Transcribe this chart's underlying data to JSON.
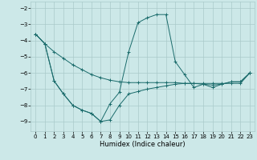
{
  "xlabel": "Humidex (Indice chaleur)",
  "bg_color": "#cce8e8",
  "grid_color": "#aacaca",
  "line_color": "#1a6b6b",
  "xlim": [
    -0.5,
    23.5
  ],
  "ylim": [
    -9.6,
    -1.6
  ],
  "yticks": [
    -9,
    -8,
    -7,
    -6,
    -5,
    -4,
    -3,
    -2
  ],
  "xticks": [
    0,
    1,
    2,
    3,
    4,
    5,
    6,
    7,
    8,
    9,
    10,
    11,
    12,
    13,
    14,
    15,
    16,
    17,
    18,
    19,
    20,
    21,
    22,
    23
  ],
  "lines": [
    {
      "x": [
        0,
        1,
        2,
        3,
        4,
        5,
        6,
        7,
        8,
        9,
        10,
        11,
        12,
        13,
        14,
        15,
        16,
        17,
        18,
        19,
        20,
        21,
        22,
        23
      ],
      "y": [
        -3.6,
        -4.2,
        -4.7,
        -5.1,
        -5.5,
        -5.8,
        -6.1,
        -6.3,
        -6.45,
        -6.55,
        -6.6,
        -6.6,
        -6.6,
        -6.6,
        -6.6,
        -6.6,
        -6.65,
        -6.65,
        -6.65,
        -6.65,
        -6.65,
        -6.65,
        -6.65,
        -6.0
      ]
    },
    {
      "x": [
        0,
        1,
        2,
        3,
        4,
        5,
        6,
        7,
        8,
        9,
        10,
        11,
        12,
        13,
        14,
        15,
        16,
        17,
        18,
        19,
        20,
        21,
        22,
        23
      ],
      "y": [
        -3.6,
        -4.2,
        -6.5,
        -7.3,
        -8.0,
        -8.3,
        -8.5,
        -9.0,
        -8.9,
        -8.0,
        -7.3,
        -7.15,
        -7.0,
        -6.9,
        -6.8,
        -6.7,
        -6.65,
        -6.65,
        -6.7,
        -6.75,
        -6.7,
        -6.55,
        -6.55,
        -6.0
      ]
    },
    {
      "x": [
        0,
        1,
        2,
        3,
        4,
        5,
        6,
        7,
        8,
        9,
        10,
        11,
        12,
        13,
        14,
        15,
        16,
        17,
        18,
        19,
        20,
        21,
        22,
        23
      ],
      "y": [
        -3.6,
        -4.2,
        -6.5,
        -7.3,
        -8.0,
        -8.3,
        -8.5,
        -9.0,
        -7.9,
        -7.2,
        -4.7,
        -2.9,
        -2.6,
        -2.4,
        -2.4,
        -5.3,
        -6.1,
        -6.9,
        -6.7,
        -6.9,
        -6.7,
        -6.55,
        -6.55,
        -6.0
      ]
    }
  ]
}
